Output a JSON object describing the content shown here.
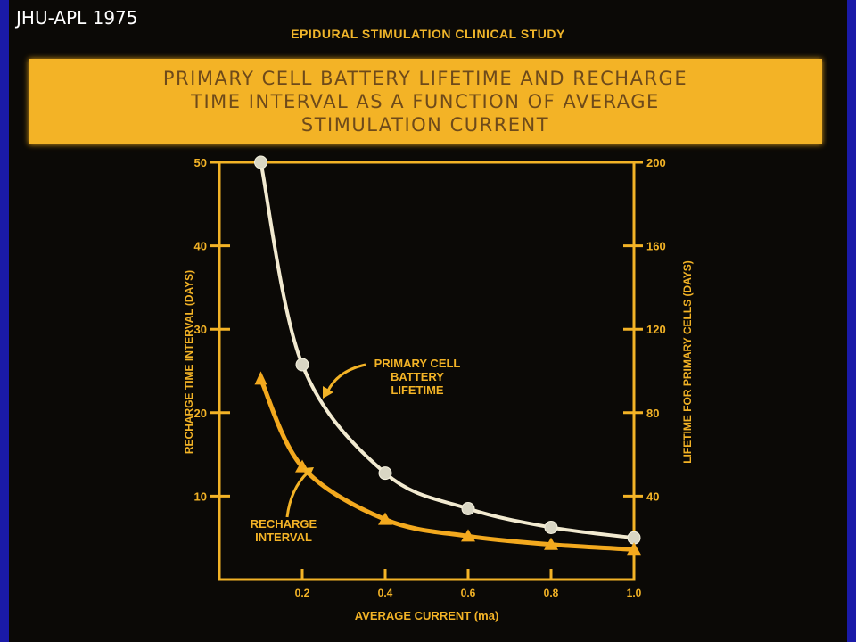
{
  "credit": "JHU-APL 1975",
  "study_title": "EPIDURAL STIMULATION CLINICAL STUDY",
  "banner_title": "PRIMARY CELL BATTERY LIFETIME AND RECHARGE\nTIME INTERVAL AS A FUNCTION OF AVERAGE\nSTIMULATION CURRENT",
  "colors": {
    "background": "#0b0906",
    "frame": "#f3b326",
    "banner": "#f3b326",
    "lifetime_curve": "#f2ead0",
    "recharge_curve": "#f3a91e",
    "side_bar": "#1a1aa8"
  },
  "chart_data": {
    "type": "line",
    "xlabel": "AVERAGE CURRENT (ma)",
    "ylabel_left": "RECHARGE TIME INTERVAL (DAYS)",
    "ylabel_right": "LIFETIME FOR PRIMARY CELLS (DAYS)",
    "xlim": [
      0,
      1.0
    ],
    "ylim_left": [
      0,
      50
    ],
    "ylim_right": [
      0,
      200
    ],
    "x_ticks": [
      0.2,
      0.4,
      0.6,
      0.8,
      1.0
    ],
    "x_tick_labels": [
      "0.2",
      "0.4",
      "0.6",
      "0.8",
      "1.0"
    ],
    "y_left_ticks": [
      10,
      20,
      30,
      40,
      50
    ],
    "y_left_tick_labels": [
      "10",
      "20",
      "30",
      "40",
      "50"
    ],
    "y_right_ticks": [
      40,
      80,
      120,
      160,
      200
    ],
    "y_right_tick_labels": [
      "40",
      "80",
      "120",
      "160",
      "200"
    ],
    "grid": false,
    "series": [
      {
        "name": "PRIMARY CELL\nBATTERY\nLIFETIME",
        "axis": "right",
        "marker": "circle",
        "x": [
          0.1,
          0.2,
          0.4,
          0.6,
          0.8,
          1.0
        ],
        "y": [
          200,
          103,
          51,
          34,
          25,
          20
        ]
      },
      {
        "name": "RECHARGE\nINTERVAL",
        "axis": "left",
        "marker": "triangle",
        "x": [
          0.1,
          0.2,
          0.4,
          0.6,
          0.8,
          1.0
        ],
        "y": [
          24,
          13.5,
          7.2,
          5.2,
          4.2,
          3.6
        ]
      }
    ]
  }
}
